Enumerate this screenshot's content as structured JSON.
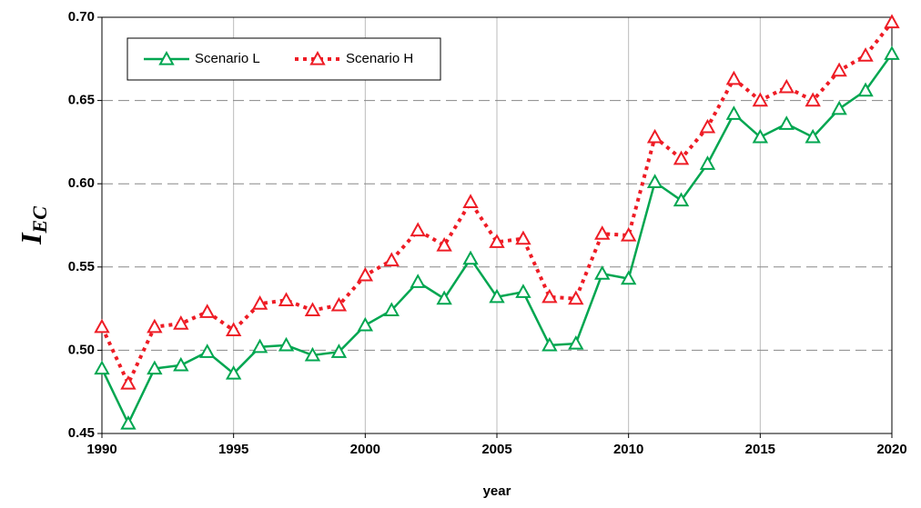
{
  "chart_data": {
    "type": "line",
    "xlabel": "year",
    "ylabel": "I",
    "ylabel_sub": "EC",
    "x": [
      1990,
      1991,
      1992,
      1993,
      1994,
      1995,
      1996,
      1997,
      1998,
      1999,
      2000,
      2001,
      2002,
      2003,
      2004,
      2005,
      2006,
      2007,
      2008,
      2009,
      2010,
      2011,
      2012,
      2013,
      2014,
      2015,
      2016,
      2017,
      2018,
      2019,
      2020
    ],
    "series": [
      {
        "name": "Scenario L",
        "color": "#00a650",
        "dashed": false,
        "values": [
          0.489,
          0.456,
          0.489,
          0.491,
          0.499,
          0.486,
          0.502,
          0.503,
          0.497,
          0.499,
          0.515,
          0.524,
          0.541,
          0.531,
          0.555,
          0.532,
          0.535,
          0.503,
          0.504,
          0.546,
          0.543,
          0.601,
          0.59,
          0.612,
          0.642,
          0.628,
          0.636,
          0.628,
          0.645,
          0.656,
          0.678
        ]
      },
      {
        "name": "Scenario H",
        "color": "#ee1c25",
        "dashed": true,
        "values": [
          0.514,
          0.48,
          0.514,
          0.516,
          0.523,
          0.512,
          0.528,
          0.53,
          0.524,
          0.527,
          0.545,
          0.554,
          0.572,
          0.563,
          0.589,
          0.565,
          0.567,
          0.532,
          0.531,
          0.57,
          0.569,
          0.628,
          0.615,
          0.634,
          0.663,
          0.65,
          0.658,
          0.65,
          0.668,
          0.677,
          0.697
        ]
      }
    ],
    "xlim": [
      1990,
      2020
    ],
    "xticks": [
      1990,
      1995,
      2000,
      2005,
      2010,
      2015,
      2020
    ],
    "ylim": [
      0.45,
      0.7
    ],
    "yticks": [
      0.45,
      {
        "value": 0.5,
        "label": "0.50"
      },
      0.55,
      {
        "value": 0.6,
        "label": "0.60"
      },
      0.65,
      {
        "value": 0.7,
        "label": "0.70"
      }
    ],
    "grid": true,
    "legend": "upper-left"
  }
}
